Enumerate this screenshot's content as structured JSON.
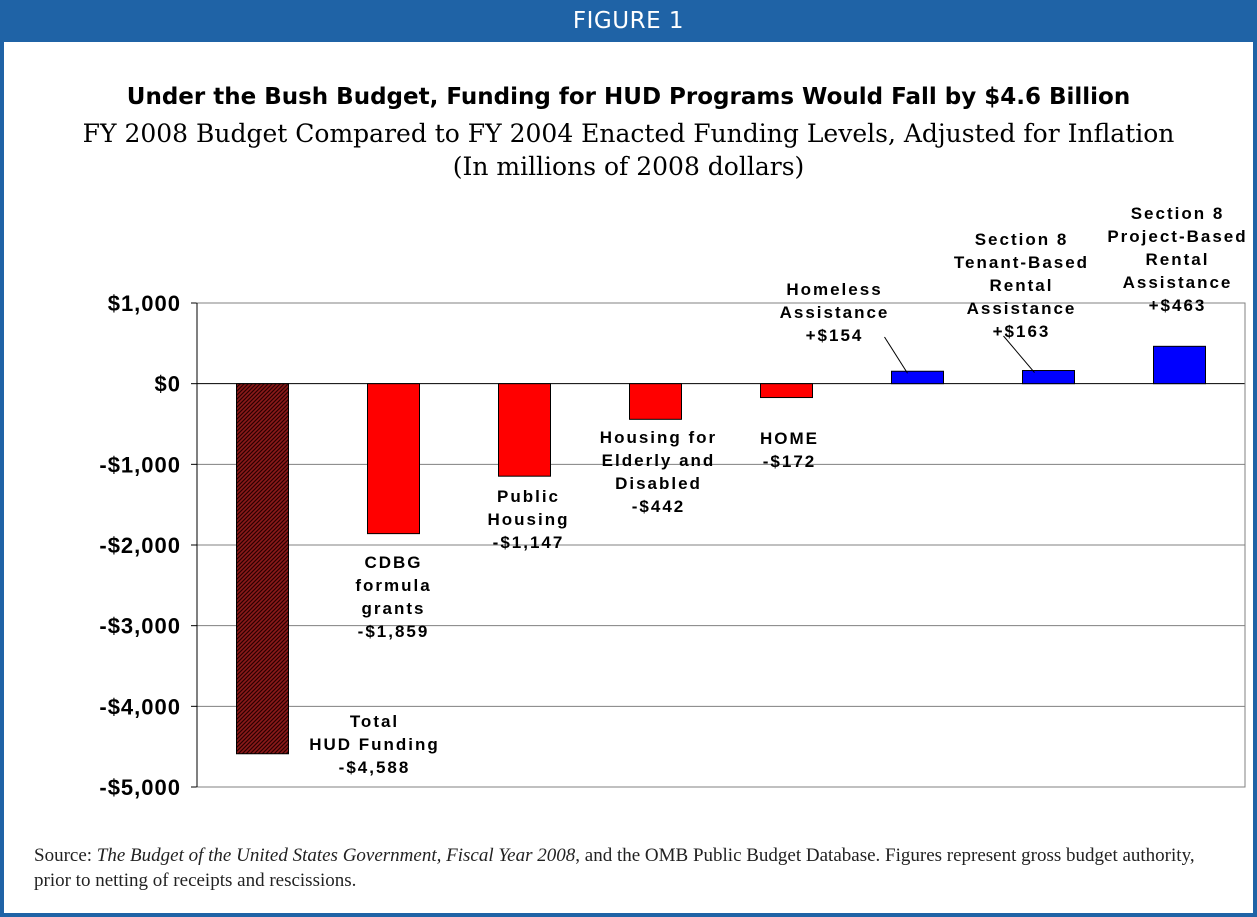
{
  "figure_label": "FIGURE 1",
  "source": {
    "prefix": "Source: ",
    "italic": "The Budget of the United States Government, Fiscal Year 2008",
    "rest": ", and the OMB Public Budget Database.  Figures represent gross budget authority, prior to netting of receipts and rescissions."
  },
  "colors": {
    "header": "#1f63a6",
    "total_bar": "#8b1a1a",
    "negative_bar": "#ff0000",
    "positive_bar": "#0000ff",
    "gridline": "#808080"
  },
  "chart_data": {
    "type": "bar",
    "title": "Under the Bush Budget, Funding for HUD Programs Would Fall by $4.6 Billion",
    "subtitle": [
      "FY 2008 Budget Compared to FY 2004 Enacted Funding Levels, Adjusted for Inflation",
      "(In millions of 2008 dollars)"
    ],
    "xlabel": "",
    "ylabel": "",
    "ylim": [
      -5000,
      1000
    ],
    "yticks": [
      1000,
      0,
      -1000,
      -2000,
      -3000,
      -4000,
      -5000
    ],
    "ytick_labels": [
      "$1,000",
      "$0",
      "-$1,000",
      "-$2,000",
      "-$3,000",
      "-$4,000",
      "-$5,000"
    ],
    "grid": true,
    "categories": [
      "Total HUD Funding",
      "CDBG formula grants",
      "Public Housing",
      "Housing for Elderly and Disabled",
      "HOME",
      "Homeless Assistance",
      "Section 8 Tenant-Based Rental Assistance",
      "Section 8 Project-Based Rental Assistance"
    ],
    "values": [
      -4588,
      -1859,
      -1147,
      -442,
      -172,
      154,
      163,
      463
    ],
    "labels": [
      [
        "Total",
        "HUD Funding",
        "-$4,588"
      ],
      [
        "CDBG",
        "formula",
        "grants",
        "-$1,859"
      ],
      [
        "Public",
        "Housing",
        "-$1,147"
      ],
      [
        "Housing for",
        "Elderly and",
        "Disabled",
        "-$442"
      ],
      [
        "HOME",
        "-$172"
      ],
      [
        "Homeless",
        "Assistance",
        "+$154"
      ],
      [
        "Section 8",
        "Tenant-Based",
        "Rental",
        "Assistance",
        "+$163"
      ],
      [
        "Section 8",
        "Project-Based",
        "Rental",
        "Assistance",
        "+$463"
      ]
    ]
  }
}
